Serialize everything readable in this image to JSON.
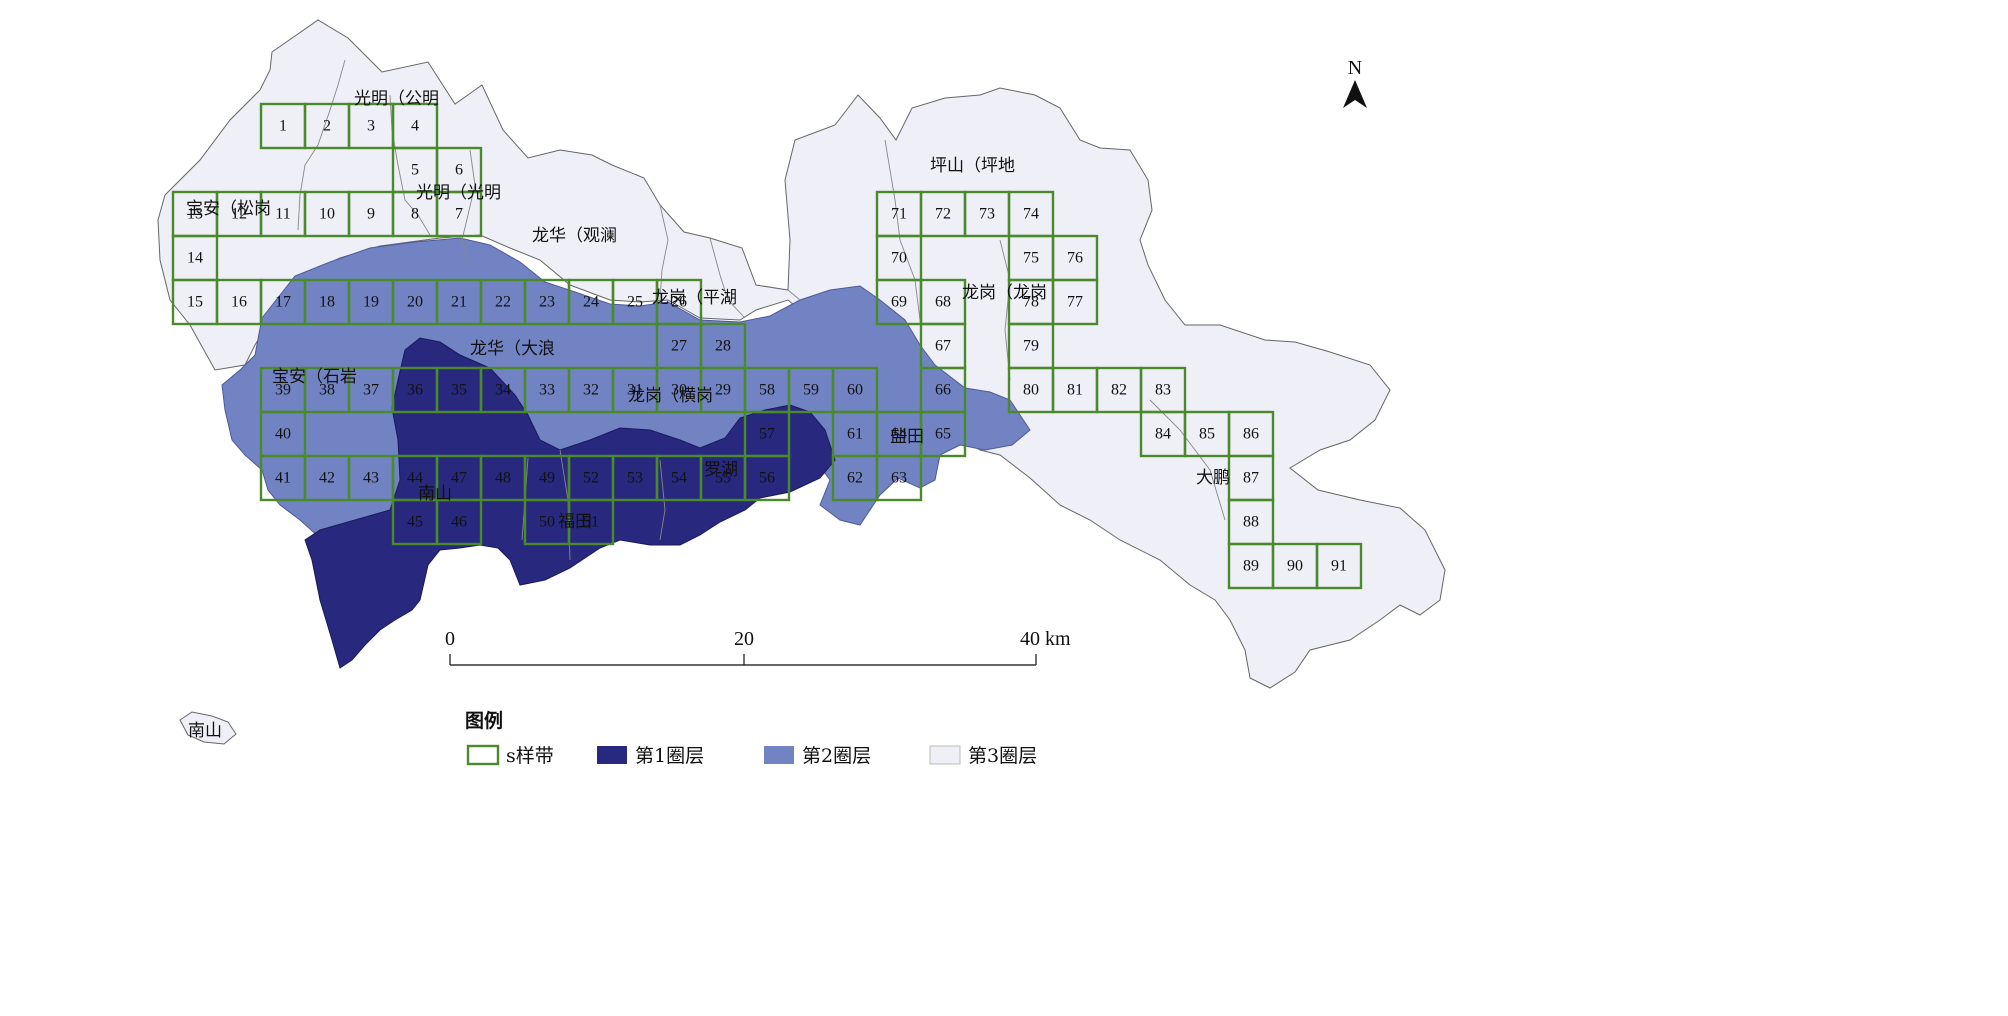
{
  "north_label": "N",
  "colors": {
    "sample_band": "#4a8a2a",
    "ring1": "#27287e",
    "ring2": "#7283c3",
    "ring3": "#eeeff7",
    "boundary": "#666666"
  },
  "district_labels": [
    "光明（公明",
    "光明（光明",
    "宝安（松岗",
    "龙华（观澜",
    "龙岗（平湖",
    "龙华（大浪",
    "宝安（石岩",
    "龙岗（横岗",
    "盐田",
    "南山",
    "福田",
    "罗湖",
    "坪山（坪地",
    "龙岗（龙岗",
    "大鹏",
    "南山"
  ],
  "sample_cells": [
    {
      "n": "1",
      "r": 0,
      "c": 2
    },
    {
      "n": "2",
      "r": 0,
      "c": 3
    },
    {
      "n": "3",
      "r": 0,
      "c": 4
    },
    {
      "n": "4",
      "r": 0,
      "c": 5
    },
    {
      "n": "5",
      "r": 1,
      "c": 5
    },
    {
      "n": "6",
      "r": 1,
      "c": 6
    },
    {
      "n": "7",
      "r": 2,
      "c": 6
    },
    {
      "n": "8",
      "r": 2,
      "c": 5
    },
    {
      "n": "9",
      "r": 2,
      "c": 4
    },
    {
      "n": "10",
      "r": 2,
      "c": 3
    },
    {
      "n": "11",
      "r": 2,
      "c": 2
    },
    {
      "n": "12",
      "r": 2,
      "c": 1
    },
    {
      "n": "13",
      "r": 2,
      "c": 0
    },
    {
      "n": "14",
      "r": 3,
      "c": 0
    },
    {
      "n": "15",
      "r": 4,
      "c": 0
    },
    {
      "n": "16",
      "r": 4,
      "c": 1
    },
    {
      "n": "17",
      "r": 4,
      "c": 2
    },
    {
      "n": "18",
      "r": 4,
      "c": 3
    },
    {
      "n": "19",
      "r": 4,
      "c": 4
    },
    {
      "n": "20",
      "r": 4,
      "c": 5
    },
    {
      "n": "21",
      "r": 4,
      "c": 6
    },
    {
      "n": "22",
      "r": 4,
      "c": 7
    },
    {
      "n": "23",
      "r": 4,
      "c": 8
    },
    {
      "n": "24",
      "r": 4,
      "c": 9
    },
    {
      "n": "25",
      "r": 4,
      "c": 10
    },
    {
      "n": "26",
      "r": 4,
      "c": 11
    },
    {
      "n": "27",
      "r": 5,
      "c": 11
    },
    {
      "n": "28",
      "r": 5,
      "c": 12
    },
    {
      "n": "29",
      "r": 6,
      "c": 12
    },
    {
      "n": "30",
      "r": 6,
      "c": 11
    },
    {
      "n": "31",
      "r": 6,
      "c": 10
    },
    {
      "n": "32",
      "r": 6,
      "c": 9
    },
    {
      "n": "33",
      "r": 6,
      "c": 8
    },
    {
      "n": "34",
      "r": 6,
      "c": 7
    },
    {
      "n": "35",
      "r": 6,
      "c": 6
    },
    {
      "n": "36",
      "r": 6,
      "c": 5
    },
    {
      "n": "37",
      "r": 6,
      "c": 4
    },
    {
      "n": "38",
      "r": 6,
      "c": 3
    },
    {
      "n": "39",
      "r": 6,
      "c": 2
    },
    {
      "n": "40",
      "r": 7,
      "c": 2
    },
    {
      "n": "41",
      "r": 8,
      "c": 2
    },
    {
      "n": "42",
      "r": 8,
      "c": 3
    },
    {
      "n": "43",
      "r": 8,
      "c": 4
    },
    {
      "n": "44",
      "r": 8,
      "c": 5
    },
    {
      "n": "47",
      "r": 8,
      "c": 6
    },
    {
      "n": "48",
      "r": 8,
      "c": 7
    },
    {
      "n": "49",
      "r": 8,
      "c": 8
    },
    {
      "n": "52",
      "r": 8,
      "c": 9
    },
    {
      "n": "53",
      "r": 8,
      "c": 10
    },
    {
      "n": "54",
      "r": 8,
      "c": 11
    },
    {
      "n": "55",
      "r": 8,
      "c": 12
    },
    {
      "n": "56",
      "r": 8,
      "c": 13
    },
    {
      "n": "45",
      "r": 9,
      "c": 5
    },
    {
      "n": "46",
      "r": 9,
      "c": 6
    },
    {
      "n": "50",
      "r": 9,
      "c": 8
    },
    {
      "n": "51",
      "r": 9,
      "c": 9
    },
    {
      "n": "57",
      "r": 7,
      "c": 13
    },
    {
      "n": "58",
      "r": 6,
      "c": 13
    },
    {
      "n": "59",
      "r": 6,
      "c": 14
    },
    {
      "n": "60",
      "r": 6,
      "c": 15
    },
    {
      "n": "61",
      "r": 7,
      "c": 15
    },
    {
      "n": "62",
      "r": 8,
      "c": 15
    },
    {
      "n": "63",
      "r": 8,
      "c": 16
    },
    {
      "n": "64",
      "r": 7,
      "c": 16
    },
    {
      "n": "65",
      "r": 7,
      "c": 17
    },
    {
      "n": "66",
      "r": 6,
      "c": 17
    },
    {
      "n": "67",
      "r": 5,
      "c": 17
    },
    {
      "n": "68",
      "r": 4,
      "c": 17
    },
    {
      "n": "69",
      "r": 4,
      "c": 16
    },
    {
      "n": "70",
      "r": 3,
      "c": 16
    },
    {
      "n": "71",
      "r": 2,
      "c": 16
    },
    {
      "n": "72",
      "r": 2,
      "c": 17
    },
    {
      "n": "73",
      "r": 2,
      "c": 18
    },
    {
      "n": "74",
      "r": 2,
      "c": 19
    },
    {
      "n": "75",
      "r": 3,
      "c": 19
    },
    {
      "n": "76",
      "r": 3,
      "c": 20
    },
    {
      "n": "77",
      "r": 4,
      "c": 20
    },
    {
      "n": "78",
      "r": 4,
      "c": 19
    },
    {
      "n": "79",
      "r": 5,
      "c": 19
    },
    {
      "n": "80",
      "r": 6,
      "c": 19
    },
    {
      "n": "81",
      "r": 6,
      "c": 20
    },
    {
      "n": "82",
      "r": 6,
      "c": 21
    },
    {
      "n": "83",
      "r": 6,
      "c": 22
    },
    {
      "n": "84",
      "r": 7,
      "c": 22
    },
    {
      "n": "85",
      "r": 7,
      "c": 23
    },
    {
      "n": "86",
      "r": 7,
      "c": 24
    },
    {
      "n": "87",
      "r": 8,
      "c": 24
    },
    {
      "n": "88",
      "r": 9,
      "c": 24
    },
    {
      "n": "89",
      "r": 10,
      "c": 24
    },
    {
      "n": "90",
      "r": 10,
      "c": 25
    },
    {
      "n": "91",
      "r": 10,
      "c": 26
    }
  ],
  "scale": {
    "ticks": [
      "0",
      "20",
      "40 km"
    ]
  },
  "legend": {
    "title": "图例",
    "items": [
      {
        "label": "s样带",
        "key": "sample_band"
      },
      {
        "label": "第1圈层",
        "key": "ring1"
      },
      {
        "label": "第2圈层",
        "key": "ring2"
      },
      {
        "label": "第3圈层",
        "key": "ring3"
      }
    ]
  }
}
